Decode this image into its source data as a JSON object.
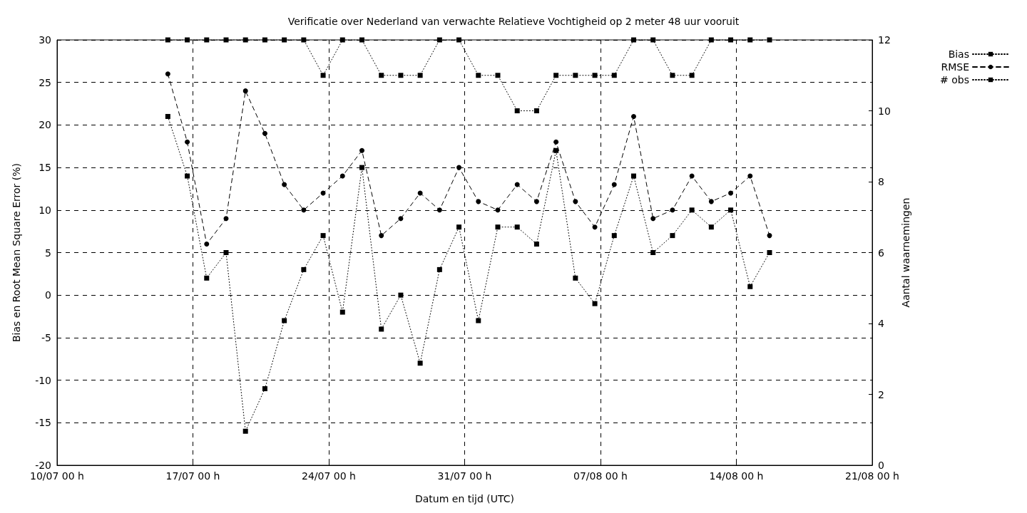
{
  "chart_data": {
    "type": "line",
    "title": "Verificatie over Nederland van verwachte Relatieve Vochtigheid op 2 meter 48 uur vooruit",
    "xlabel": "Datum en tijd (UTC)",
    "ylabel": "Bias en Root Mean Square Error (%)",
    "y2label": "Aantal waarnemingen",
    "x": [
      "--07-15T17:00",
      "--07-16T17:00",
      "--07-17T17:00",
      "--07-18T17:00",
      "--07-19T17:00",
      "--07-20T17:00",
      "--07-21T17:00",
      "--07-22T17:00",
      "--07-23T17:00",
      "--07-24T17:00",
      "--07-25T17:00",
      "--07-26T17:00",
      "--07-27T17:00",
      "--07-28T17:00",
      "--07-29T17:00",
      "--07-30T17:00",
      "--07-31T17:00",
      "--08-01T17:00",
      "--08-02T17:00",
      "--08-03T17:00",
      "--08-04T17:00",
      "--08-05T17:00",
      "--08-06T17:00",
      "--08-07T17:00",
      "--08-08T17:00",
      "--08-09T17:00",
      "--08-10T17:00",
      "--08-11T17:00",
      "--08-12T17:00",
      "--08-13T17:00",
      "--08-14T17:00",
      "--08-15T17:00"
    ],
    "series": [
      {
        "name": "Bias",
        "color": "#000000",
        "marker": "square",
        "line_style": "dotted",
        "values": [
          21,
          14,
          2,
          5,
          -16,
          -11,
          -3,
          3,
          7,
          -2,
          15,
          -4,
          0,
          -8,
          3,
          8,
          -3,
          8,
          8,
          6,
          17,
          2,
          -1,
          7,
          14,
          5,
          7,
          10,
          8,
          10,
          1,
          5
        ]
      },
      {
        "name": "RMSE",
        "color": "#000000",
        "marker": "circle",
        "line_style": "dashed",
        "values": [
          26,
          18,
          6,
          9,
          24,
          19,
          13,
          10,
          12,
          14,
          17,
          7,
          9,
          12,
          10,
          15,
          11,
          10,
          13,
          11,
          18,
          11,
          8,
          13,
          21,
          9,
          10,
          14,
          11,
          12,
          14,
          7
        ]
      },
      {
        "name": "# obs",
        "color": "#000000",
        "marker": "square",
        "line_style": "dotted",
        "axis": "y2",
        "values": [
          12,
          12,
          12,
          12,
          12,
          12,
          12,
          12,
          11,
          12,
          12,
          11,
          11,
          11,
          12,
          12,
          11,
          11,
          10,
          10,
          11,
          11,
          11,
          11,
          12,
          12,
          11,
          11,
          12,
          12,
          12,
          12
        ]
      }
    ],
    "xlim": [
      "--07-10T00:00",
      "--08-21T00:00"
    ],
    "xticks": [
      {
        "value": "--07-10T00:00",
        "label": "10/07 00 h"
      },
      {
        "value": "--07-17T00:00",
        "label": "17/07 00 h"
      },
      {
        "value": "--07-24T00:00",
        "label": "24/07 00 h"
      },
      {
        "value": "--07-31T00:00",
        "label": "31/07 00 h"
      },
      {
        "value": "--08-07T00:00",
        "label": "07/08 00 h"
      },
      {
        "value": "--08-14T00:00",
        "label": "14/08 00 h"
      },
      {
        "value": "--08-21T00:00",
        "label": "21/08 00 h"
      }
    ],
    "ylim": [
      -20,
      30
    ],
    "yticks": [
      -20,
      -15,
      -10,
      -5,
      0,
      5,
      10,
      15,
      20,
      25,
      30
    ],
    "y2lim": [
      0,
      12
    ],
    "y2ticks": [
      0,
      2,
      4,
      6,
      8,
      10,
      12
    ],
    "grid": true,
    "legend": "top right"
  }
}
